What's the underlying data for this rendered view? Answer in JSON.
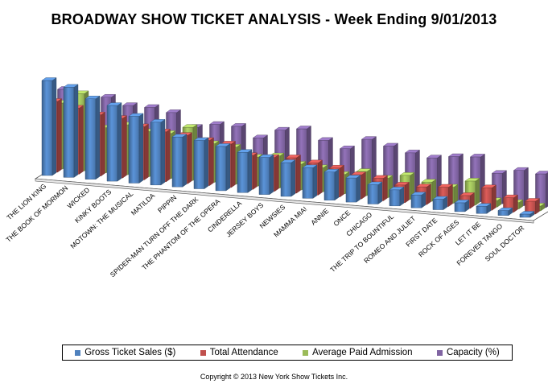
{
  "title": "BROADWAY SHOW TICKET ANALYSIS - Week Ending 9/01/2013",
  "copyright": "Copyright © 2013 New York Show Tickets Inc.",
  "colors": {
    "gross": "#4f81bd",
    "attendance": "#c0504d",
    "avg": "#9bbb59",
    "capacity": "#8064a2"
  },
  "legend": [
    {
      "label": "Gross Ticket Sales ($)",
      "color": "#4f81bd"
    },
    {
      "label": "Total Attendance",
      "color": "#c0504d"
    },
    {
      "label": "Average Paid Admission",
      "color": "#9bbb59"
    },
    {
      "label": "Capacity (%)",
      "color": "#8064a2"
    }
  ],
  "chart_data": {
    "type": "bar",
    "style": "3d-clustered",
    "title": "BROADWAY SHOW TICKET ANALYSIS - Week Ending 9/01/2013",
    "categories": [
      "THE LION KING",
      "THE BOOK OF MORMON",
      "WICKED",
      "KINKY BOOTS",
      "MOTOWN: THE MUSICAL",
      "MATILDA",
      "PIPPIN",
      "SPIDER-MAN TURN OFF THE DARK",
      "THE PHANTOM OF THE OPERA",
      "CINDERELLA",
      "JERSEY BOYS",
      "NEWSIES",
      "MAMMA MIA!",
      "ANNIE",
      "ONCE",
      "CHICAGO",
      "THE TRIP TO BOUNTIFUL",
      "ROMEO AND JULIET",
      "FIRST DATE",
      "ROCK OF AGES",
      "LET IT BE",
      "FOREVER TANGO",
      "SOUL DOCTOR"
    ],
    "series": [
      {
        "name": "Gross Ticket Sales ($)",
        "values": [
          118,
          112,
          100,
          94,
          83,
          78,
          62,
          60,
          55,
          50,
          46,
          42,
          38,
          35,
          30,
          24,
          20,
          16,
          13,
          11,
          9,
          6,
          4
        ]
      },
      {
        "name": "Total Attendance",
        "values": [
          88,
          82,
          76,
          74,
          66,
          62,
          60,
          56,
          54,
          42,
          42,
          44,
          40,
          36,
          30,
          28,
          22,
          22,
          24,
          16,
          28,
          18,
          16
        ]
      },
      {
        "name": "Average Paid Admission",
        "values": [
          82,
          96,
          56,
          62,
          56,
          56,
          66,
          48,
          46,
          36,
          40,
          32,
          30,
          24,
          30,
          24,
          30,
          24,
          20,
          30,
          8,
          8,
          6
        ]
      },
      {
        "name": "Capacity (%)",
        "values": [
          95,
          85,
          90,
          82,
          82,
          78,
          62,
          68,
          68,
          56,
          68,
          72,
          60,
          52,
          66,
          60,
          54,
          50,
          54,
          56,
          38,
          44,
          42
        ]
      }
    ],
    "legend_position": "bottom",
    "grid": false
  }
}
